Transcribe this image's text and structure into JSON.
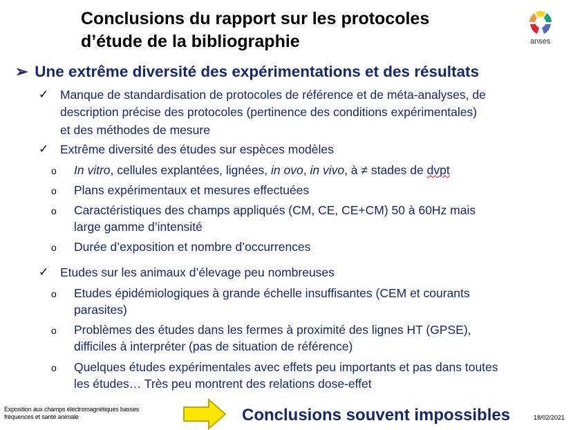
{
  "title": {
    "line1": "Conclusions du rapport sur les protocoles",
    "line2": "d’étude de la bibliographie"
  },
  "logo": {
    "text": "anses",
    "colors": [
      "#f5d800",
      "#1aa37a",
      "#5068c0",
      "#e0202a",
      "#f39a3c"
    ]
  },
  "heading": {
    "icon": "arrow-bullet-icon",
    "text": "Une extrême diversité des expérimentations et des résultats"
  },
  "points": [
    {
      "icon": "checkmark-icon",
      "lines": [
        "Manque de standardisation de protocoles de référence et de méta-analyses, de",
        "description précise des protocoles (pertinence des conditions expérimentales)",
        "et des méthodes de mesure"
      ]
    },
    {
      "icon": "checkmark-icon",
      "lines": [
        "Extrême diversité des études sur espèces modèles"
      ],
      "sub": [
        {
          "segments": [
            "In vitro",
            ", cellules  explantées,  lignées, ",
            "in ovo",
            ", ",
            "in vivo",
            ", à ≠ stades de ",
            "dvpt"
          ]
        },
        {
          "lines": [
            "Plans expérimentaux  et mesures effectuées"
          ]
        },
        {
          "lines": [
            "Caractéristiques des champs appliqués  (CM, CE, CE+CM) 50 à 60Hz  mais",
            "large gamme d’intensité"
          ]
        },
        {
          "lines": [
            "Durée d’exposition  et nombre  d’occurrences"
          ]
        }
      ]
    },
    {
      "icon": "checkmark-icon",
      "lines": [
        "Etudes sur les animaux d’élevage peu nombreuses"
      ],
      "sub": [
        {
          "lines": [
            "Etudes  épidémiologiques  à grande échelle  insuffisantes  (CEM et courants",
            "parasites)"
          ]
        },
        {
          "lines": [
            "Problèmes  des études  dans les fermes à proximité  des lignes HT (GPSE),",
            "difficiles à interpréter (pas de situation de référence)"
          ]
        },
        {
          "lines": [
            "Quelques  études  expérimentales  avec effets peu importants  et pas dans  toutes",
            "les études…  Très peu montrent  des relations  dose-effet"
          ]
        }
      ]
    }
  ],
  "sub_bullet": "o",
  "footer": {
    "line1": "Exposition aux champs électromagnétiques basses",
    "line2": "fréquences et santé animale",
    "date": "18/02/2021"
  },
  "conclusion": {
    "icon": "yellow-arrow-icon",
    "text": "Conclusions souvent impossibles",
    "arrow_color": "#ffe600"
  }
}
